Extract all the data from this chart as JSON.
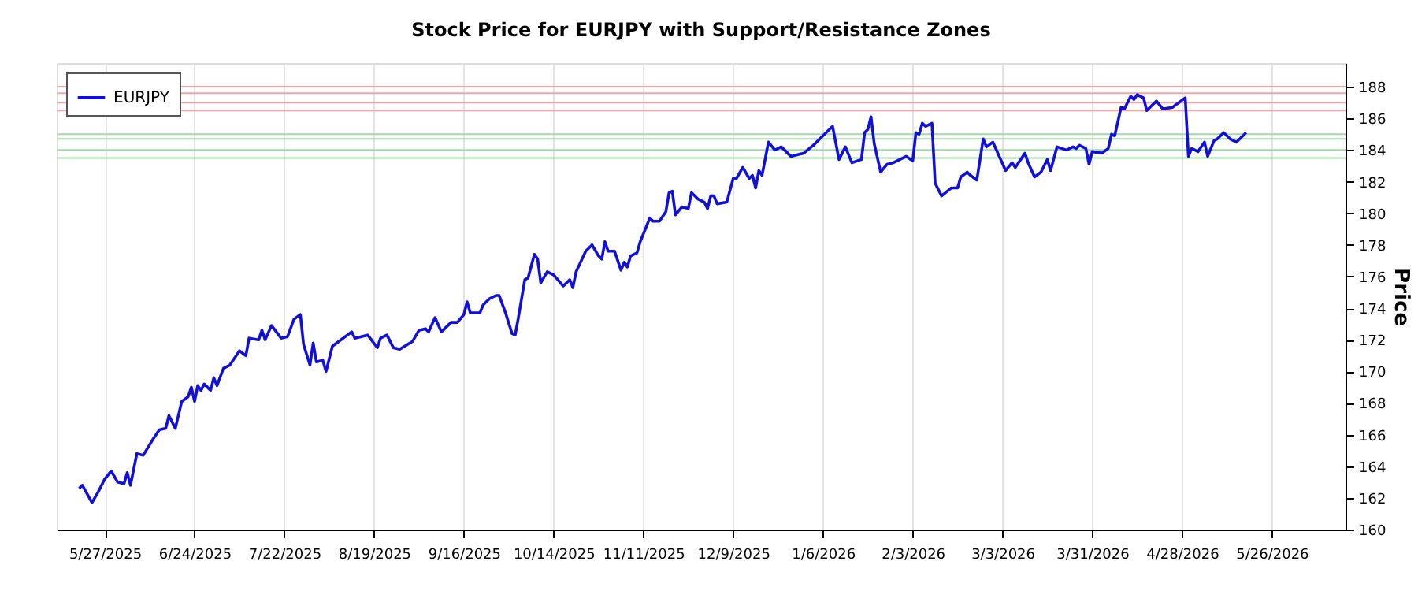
{
  "chart_data": {
    "type": "line",
    "title": "Stock Price for EURJPY with Support/Resistance Zones",
    "ylabel": "Price",
    "x": [
      "2025-05-19",
      "2025-05-20",
      "2025-05-23",
      "2025-05-25",
      "2025-05-27",
      "2025-05-29",
      "2025-05-31",
      "2025-06-02",
      "2025-06-03",
      "2025-06-04",
      "2025-06-06",
      "2025-06-08",
      "2025-06-11",
      "2025-06-13",
      "2025-06-15",
      "2025-06-16",
      "2025-06-18",
      "2025-06-20",
      "2025-06-22",
      "2025-06-23",
      "2025-06-24",
      "2025-06-25",
      "2025-06-26",
      "2025-06-27",
      "2025-06-29",
      "2025-06-30",
      "2025-07-01",
      "2025-07-03",
      "2025-07-05",
      "2025-07-08",
      "2025-07-10",
      "2025-07-11",
      "2025-07-14",
      "2025-07-15",
      "2025-07-16",
      "2025-07-18",
      "2025-07-21",
      "2025-07-23",
      "2025-07-25",
      "2025-07-27",
      "2025-07-28",
      "2025-07-30",
      "2025-07-31",
      "2025-08-01",
      "2025-08-03",
      "2025-08-04",
      "2025-08-06",
      "2025-08-08",
      "2025-08-12",
      "2025-08-13",
      "2025-08-17",
      "2025-08-20",
      "2025-08-21",
      "2025-08-23",
      "2025-08-25",
      "2025-08-27",
      "2025-08-31",
      "2025-09-02",
      "2025-09-04",
      "2025-09-05",
      "2025-09-07",
      "2025-09-09",
      "2025-09-12",
      "2025-09-14",
      "2025-09-16",
      "2025-09-17",
      "2025-09-18",
      "2025-09-21",
      "2025-09-22",
      "2025-09-24",
      "2025-09-26",
      "2025-09-27",
      "2025-09-29",
      "2025-10-01",
      "2025-10-02",
      "2025-10-03",
      "2025-10-05",
      "2025-10-06",
      "2025-10-08",
      "2025-10-09",
      "2025-10-10",
      "2025-10-12",
      "2025-10-14",
      "2025-10-17",
      "2025-10-19",
      "2025-10-20",
      "2025-10-21",
      "2025-10-24",
      "2025-10-26",
      "2025-10-28",
      "2025-10-29",
      "2025-10-30",
      "2025-10-31",
      "2025-11-02",
      "2025-11-04",
      "2025-11-05",
      "2025-11-06",
      "2025-11-07",
      "2025-11-09",
      "2025-11-10",
      "2025-11-13",
      "2025-11-14",
      "2025-11-16",
      "2025-11-18",
      "2025-11-19",
      "2025-11-20",
      "2025-11-21",
      "2025-11-23",
      "2025-11-25",
      "2025-11-26",
      "2025-11-28",
      "2025-11-30",
      "2025-12-01",
      "2025-12-02",
      "2025-12-03",
      "2025-12-04",
      "2025-12-07",
      "2025-12-09",
      "2025-12-10",
      "2025-12-12",
      "2025-12-14",
      "2025-12-15",
      "2025-12-16",
      "2025-12-17",
      "2025-12-18",
      "2025-12-20",
      "2025-12-22",
      "2025-12-24",
      "2025-12-27",
      "2025-12-31",
      "2026-01-03",
      "2026-01-06",
      "2026-01-09",
      "2026-01-11",
      "2026-01-13",
      "2026-01-15",
      "2026-01-18",
      "2026-01-19",
      "2026-01-20",
      "2026-01-21",
      "2026-01-22",
      "2026-01-24",
      "2026-01-26",
      "2026-01-28",
      "2026-01-30",
      "2026-02-01",
      "2026-02-03",
      "2026-02-04",
      "2026-02-05",
      "2026-02-06",
      "2026-02-07",
      "2026-02-09",
      "2026-02-10",
      "2026-02-12",
      "2026-02-15",
      "2026-02-17",
      "2026-02-18",
      "2026-02-20",
      "2026-02-21",
      "2026-02-23",
      "2026-02-25",
      "2026-02-26",
      "2026-02-28",
      "2026-03-02",
      "2026-03-04",
      "2026-03-06",
      "2026-03-07",
      "2026-03-10",
      "2026-03-11",
      "2026-03-13",
      "2026-03-15",
      "2026-03-17",
      "2026-03-18",
      "2026-03-20",
      "2026-03-23",
      "2026-03-25",
      "2026-03-26",
      "2026-03-27",
      "2026-03-29",
      "2026-03-30",
      "2026-03-31",
      "2026-04-03",
      "2026-04-05",
      "2026-04-06",
      "2026-04-07",
      "2026-04-09",
      "2026-04-10",
      "2026-04-12",
      "2026-04-13",
      "2026-04-14",
      "2026-04-16",
      "2026-04-17",
      "2026-04-20",
      "2026-04-22",
      "2026-04-25",
      "2026-04-29",
      "2026-04-30",
      "2026-05-01",
      "2026-05-03",
      "2026-05-05",
      "2026-05-06",
      "2026-05-08",
      "2026-05-09",
      "2026-05-11",
      "2026-05-13",
      "2026-05-15",
      "2026-05-17",
      "2026-05-18"
    ],
    "series": [
      {
        "name": "EURJPY",
        "color": "#1010d8",
        "values": [
          162.6,
          162.8,
          161.7,
          162.4,
          163.2,
          163.7,
          163.0,
          162.9,
          163.6,
          162.8,
          164.8,
          164.7,
          165.7,
          166.3,
          166.4,
          167.2,
          166.4,
          168.1,
          168.4,
          169.0,
          168.1,
          169.1,
          168.8,
          169.2,
          168.8,
          169.6,
          169.1,
          170.2,
          170.4,
          171.3,
          171.0,
          172.1,
          172.0,
          172.6,
          172.0,
          172.9,
          172.1,
          172.2,
          173.3,
          173.6,
          171.7,
          170.4,
          171.8,
          170.6,
          170.7,
          170.0,
          171.6,
          171.9,
          172.5,
          172.1,
          172.3,
          171.5,
          172.1,
          172.3,
          171.5,
          171.4,
          171.9,
          172.6,
          172.7,
          172.5,
          173.4,
          172.5,
          173.1,
          173.1,
          173.6,
          174.4,
          173.7,
          173.7,
          174.2,
          174.6,
          174.8,
          174.8,
          173.7,
          172.4,
          172.3,
          173.4,
          175.8,
          175.9,
          177.4,
          177.1,
          175.6,
          176.3,
          176.1,
          175.4,
          175.8,
          175.3,
          176.3,
          177.6,
          178.0,
          177.3,
          177.1,
          178.2,
          177.6,
          177.6,
          176.4,
          176.9,
          176.6,
          177.3,
          177.5,
          178.2,
          179.7,
          179.5,
          179.5,
          180.1,
          181.3,
          181.4,
          179.9,
          180.4,
          180.3,
          181.3,
          180.9,
          180.7,
          180.3,
          181.1,
          181.1,
          180.6,
          180.7,
          182.2,
          182.2,
          182.9,
          182.2,
          182.4,
          181.6,
          182.7,
          182.4,
          184.5,
          184.0,
          184.2,
          183.6,
          183.8,
          184.3,
          184.9,
          185.5,
          183.4,
          184.2,
          183.2,
          183.4,
          185.1,
          185.3,
          186.1,
          184.4,
          182.6,
          183.1,
          183.2,
          183.4,
          183.6,
          183.3,
          185.1,
          185.0,
          185.7,
          185.5,
          185.7,
          181.9,
          181.1,
          181.6,
          181.6,
          182.3,
          182.6,
          182.4,
          182.1,
          184.7,
          184.2,
          184.5,
          183.6,
          182.7,
          183.2,
          182.9,
          183.8,
          183.2,
          182.3,
          182.6,
          183.4,
          182.7,
          184.2,
          184.0,
          184.2,
          184.1,
          184.3,
          184.1,
          183.1,
          183.9,
          183.8,
          184.1,
          185.0,
          184.9,
          186.7,
          186.6,
          187.4,
          187.2,
          187.5,
          187.3,
          186.5,
          187.1,
          186.6,
          186.7,
          187.3,
          183.6,
          184.1,
          183.9,
          184.5,
          183.6,
          184.6,
          184.7,
          185.1,
          184.7,
          184.5,
          184.9,
          185.1
        ]
      }
    ],
    "xlim": [
      "2025-05-12",
      "2026-06-18"
    ],
    "xticks": [
      {
        "value": "2025-05-27",
        "label": "5/27/2025"
      },
      {
        "value": "2025-06-24",
        "label": "6/24/2025"
      },
      {
        "value": "2025-07-22",
        "label": "7/22/2025"
      },
      {
        "value": "2025-08-19",
        "label": "8/19/2025"
      },
      {
        "value": "2025-09-16",
        "label": "9/16/2025"
      },
      {
        "value": "2025-10-14",
        "label": "10/14/2025"
      },
      {
        "value": "2025-11-11",
        "label": "11/11/2025"
      },
      {
        "value": "2025-12-09",
        "label": "12/9/2025"
      },
      {
        "value": "2026-01-06",
        "label": "1/6/2026"
      },
      {
        "value": "2026-02-03",
        "label": "2/3/2026"
      },
      {
        "value": "2026-03-03",
        "label": "3/3/2026"
      },
      {
        "value": "2026-03-31",
        "label": "3/31/2026"
      },
      {
        "value": "2026-04-28",
        "label": "4/28/2026"
      },
      {
        "value": "2026-05-26",
        "label": "5/26/2026"
      }
    ],
    "ylim": [
      160,
      189.5
    ],
    "yticks": [
      160,
      162,
      164,
      166,
      168,
      170,
      172,
      174,
      176,
      178,
      180,
      182,
      184,
      186,
      188
    ],
    "ref_lines": [
      {
        "axis": "y",
        "value": 188.0,
        "color": "#f4a4a4"
      },
      {
        "axis": "y",
        "value": 187.6,
        "color": "#f4a4a4"
      },
      {
        "axis": "y",
        "value": 187.0,
        "color": "#f4a4a4"
      },
      {
        "axis": "y",
        "value": 186.5,
        "color": "#f4a4a4"
      },
      {
        "axis": "y",
        "value": 185.0,
        "color": "#a4d8a4"
      },
      {
        "axis": "y",
        "value": 184.7,
        "color": "#a4d8a4"
      },
      {
        "axis": "y",
        "value": 184.0,
        "color": "#a4d8a4"
      },
      {
        "axis": "y",
        "value": 183.5,
        "color": "#a4d8a4"
      }
    ],
    "grid": "x",
    "legend": "top left",
    "marker": "none",
    "line_style": "solid"
  }
}
